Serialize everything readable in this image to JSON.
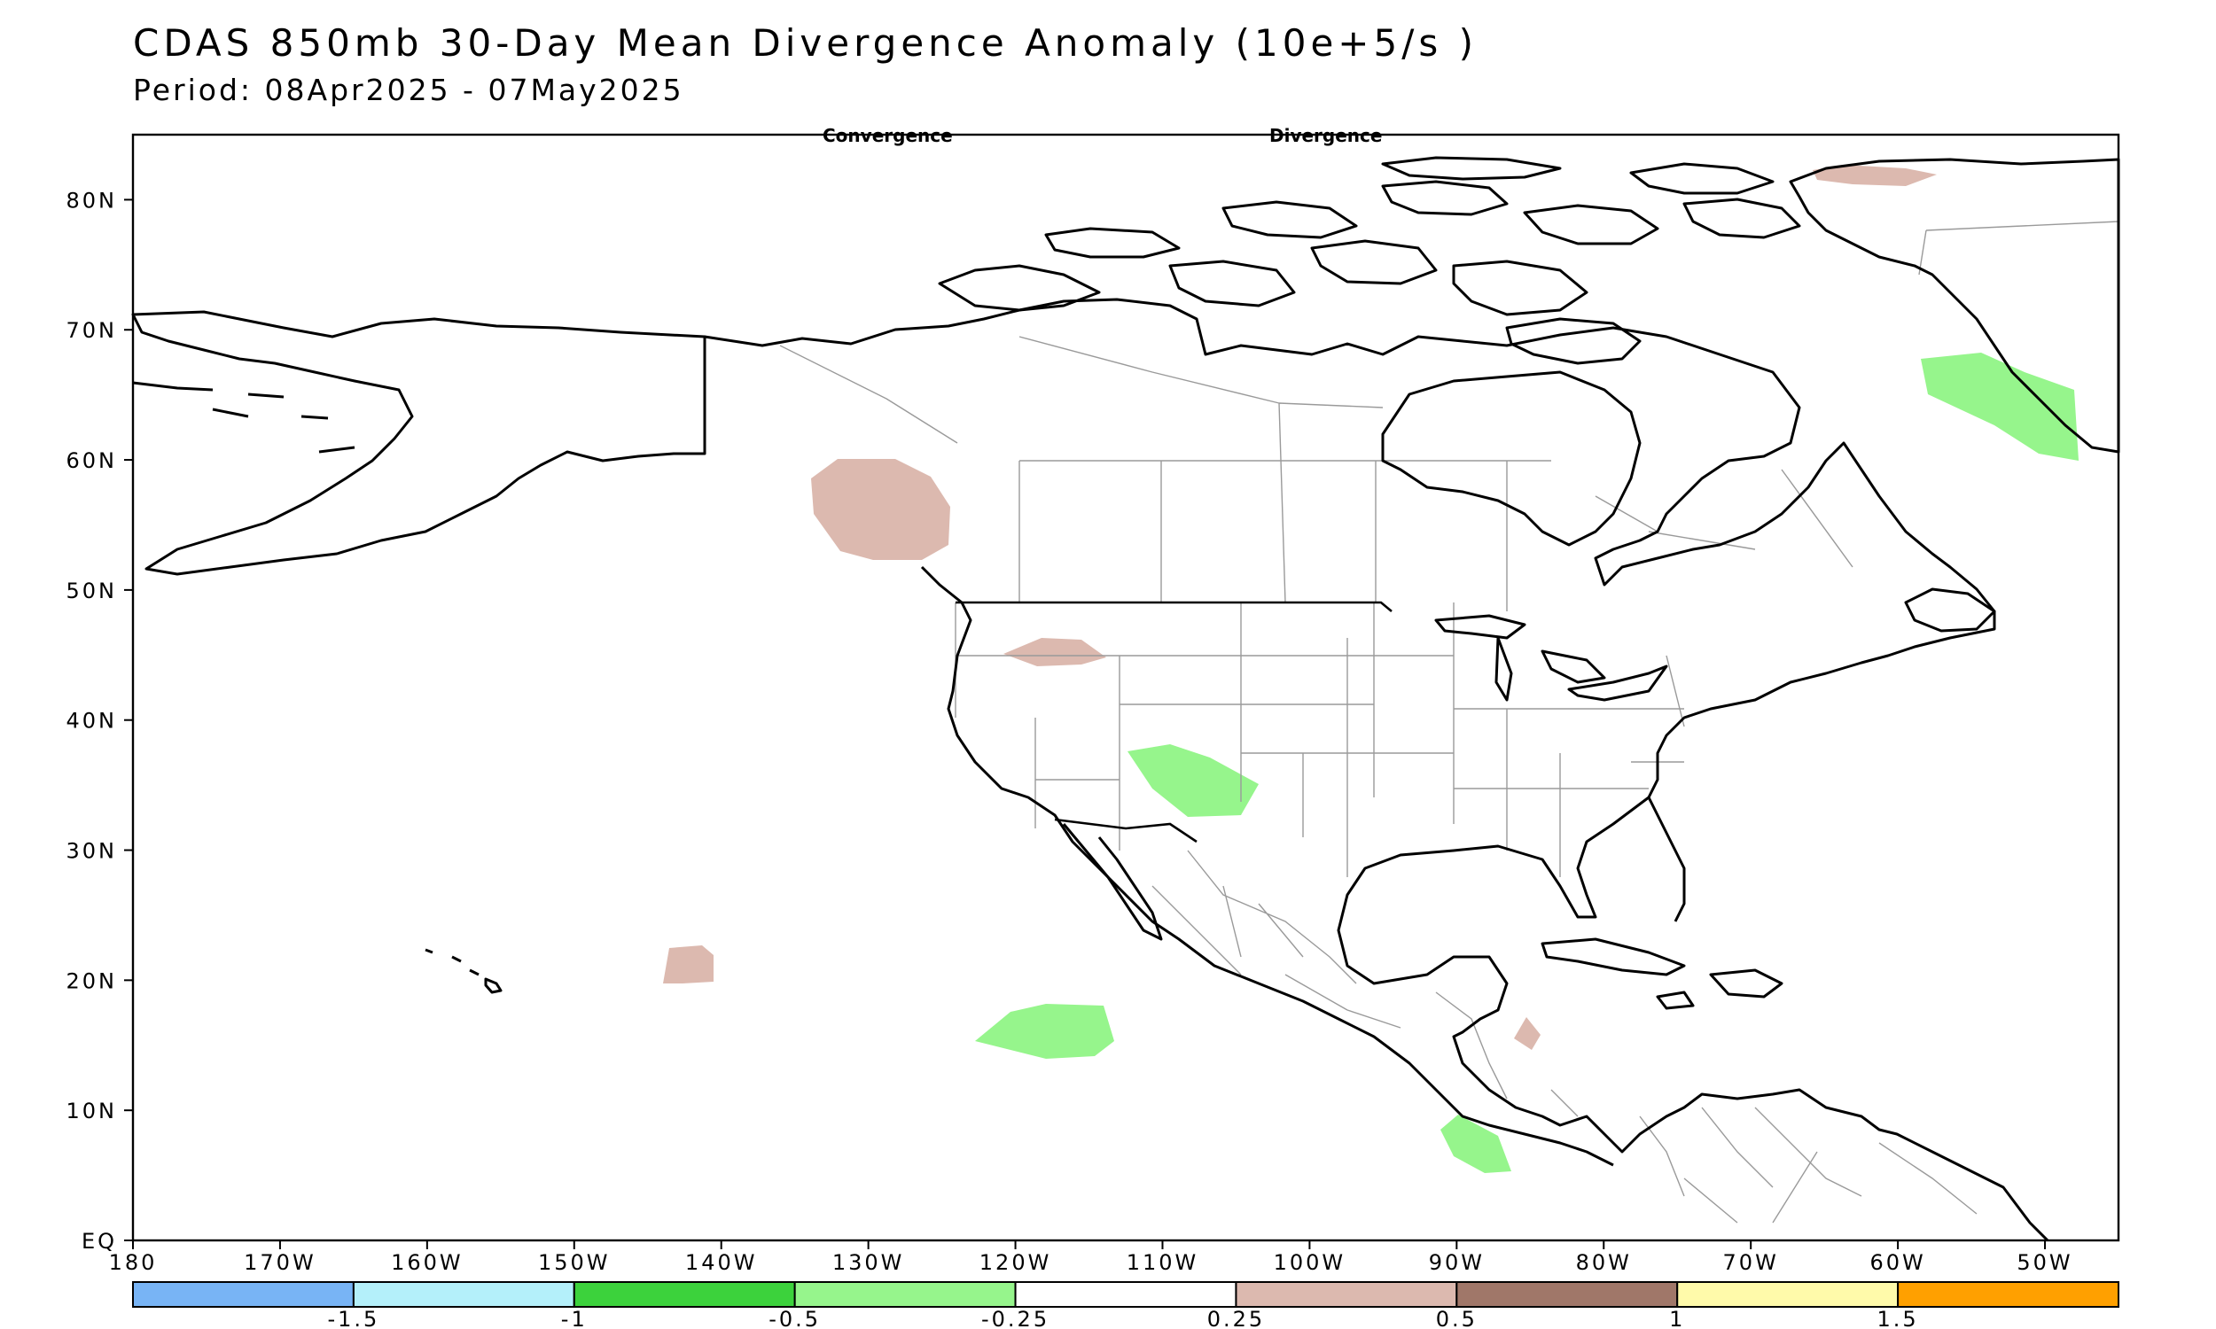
{
  "title": "CDAS 850mb 30-Day Mean Divergence Anomaly (10e+5/s )",
  "subtitle": "Period: 08Apr2025 - 07May2025",
  "map_labels": {
    "convergence": "Convergence",
    "divergence": "Divergence"
  },
  "lat_labels": [
    "80N",
    "70N",
    "60N",
    "50N",
    "40N",
    "30N",
    "20N",
    "10N",
    "EQ"
  ],
  "lon_labels": [
    "180",
    "170W",
    "160W",
    "150W",
    "140W",
    "130W",
    "120W",
    "110W",
    "100W",
    "90W",
    "80W",
    "70W",
    "60W",
    "50W"
  ],
  "colorbar": {
    "colors": [
      "#78b4f5",
      "#b4f0fa",
      "#3cd23c",
      "#96f58c",
      "#ffffff",
      "#dcb9af",
      "#a07769",
      "#fffaaa",
      "#ffa000"
    ],
    "labels": [
      "-1.5",
      "-1",
      "-0.5",
      "-0.25",
      "0.25",
      "0.5",
      "1",
      "1.5"
    ]
  },
  "anomaly_regions": [
    {
      "name": "greenland-west-divergence",
      "category": "-0.5 to -0.25",
      "color": "#96f58c"
    },
    {
      "name": "arizona-new-mexico-divergence",
      "category": "-0.5 to -0.25",
      "color": "#96f58c"
    },
    {
      "name": "pacific-15n-divergence",
      "category": "-0.5 to -0.25",
      "color": "#96f58c"
    },
    {
      "name": "central-america-pacific-divergence",
      "category": "-0.5 to -0.25",
      "color": "#96f58c"
    },
    {
      "name": "british-columbia-convergence",
      "category": "0.25 to 0.5",
      "color": "#dcb9af"
    },
    {
      "name": "montana-convergence",
      "category": "0.25 to 0.5",
      "color": "#dcb9af"
    },
    {
      "name": "pacific-20n-convergence",
      "category": "0.25 to 0.5",
      "color": "#dcb9af"
    },
    {
      "name": "arctic-greenland-convergence",
      "category": "0.25 to 0.5",
      "color": "#dcb9af"
    },
    {
      "name": "honduras-convergence",
      "category": "0.25 to 0.5",
      "color": "#dcb9af"
    }
  ]
}
